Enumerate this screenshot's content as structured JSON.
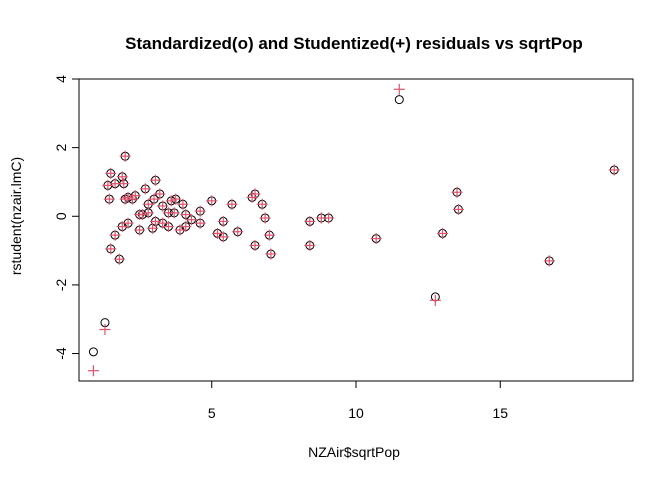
{
  "chart_data": {
    "type": "scatter",
    "title": "Standardized(o) and Studentized(+) residuals vs sqrtPop",
    "xlabel": "NZAir$sqrtPop",
    "ylabel": "rstudent(nzair.lmC)",
    "xlim": [
      0.4,
      19.6
    ],
    "ylim": [
      -4.8,
      4.0
    ],
    "x_ticks": [
      5,
      10,
      15
    ],
    "y_ticks": [
      -4,
      -2,
      0,
      2,
      4
    ],
    "grid": false,
    "legend": "none",
    "colors": {
      "standardized": "#000000",
      "studentized": "#DF536B"
    },
    "series": [
      {
        "name": "Standardized",
        "marker": "circle",
        "points": [
          [
            0.9,
            -3.95
          ],
          [
            1.3,
            -3.1
          ],
          [
            1.4,
            0.9
          ],
          [
            1.5,
            1.25
          ],
          [
            1.45,
            0.5
          ],
          [
            1.5,
            -0.95
          ],
          [
            1.65,
            -0.55
          ],
          [
            1.65,
            0.95
          ],
          [
            1.8,
            -1.25
          ],
          [
            1.9,
            1.15
          ],
          [
            1.95,
            0.95
          ],
          [
            1.9,
            -0.3
          ],
          [
            2.0,
            1.75
          ],
          [
            2.0,
            0.5
          ],
          [
            2.1,
            -0.2
          ],
          [
            2.1,
            0.55
          ],
          [
            2.25,
            0.5
          ],
          [
            2.35,
            0.6
          ],
          [
            2.5,
            -0.4
          ],
          [
            2.5,
            0.05
          ],
          [
            2.6,
            0.05
          ],
          [
            2.7,
            0.8
          ],
          [
            2.8,
            0.1
          ],
          [
            2.8,
            0.35
          ],
          [
            2.95,
            -0.35
          ],
          [
            3.0,
            0.5
          ],
          [
            3.05,
            -0.15
          ],
          [
            3.05,
            1.05
          ],
          [
            3.2,
            0.65
          ],
          [
            3.3,
            -0.2
          ],
          [
            3.3,
            0.3
          ],
          [
            3.5,
            -0.3
          ],
          [
            3.5,
            0.1
          ],
          [
            3.6,
            0.45
          ],
          [
            3.7,
            0.1
          ],
          [
            3.75,
            0.5
          ],
          [
            3.9,
            -0.4
          ],
          [
            4.0,
            0.35
          ],
          [
            4.1,
            0.05
          ],
          [
            4.1,
            -0.3
          ],
          [
            4.3,
            -0.1
          ],
          [
            4.6,
            0.15
          ],
          [
            4.6,
            -0.2
          ],
          [
            5.0,
            0.45
          ],
          [
            5.2,
            -0.5
          ],
          [
            5.4,
            -0.6
          ],
          [
            5.4,
            -0.15
          ],
          [
            5.7,
            0.35
          ],
          [
            5.9,
            -0.45
          ],
          [
            6.4,
            0.55
          ],
          [
            6.5,
            0.65
          ],
          [
            6.5,
            -0.85
          ],
          [
            6.75,
            0.35
          ],
          [
            6.85,
            -0.05
          ],
          [
            7.0,
            -0.55
          ],
          [
            7.05,
            -1.1
          ],
          [
            8.4,
            -0.15
          ],
          [
            8.4,
            -0.85
          ],
          [
            8.8,
            -0.05
          ],
          [
            9.05,
            -0.05
          ],
          [
            10.7,
            -0.65
          ],
          [
            11.5,
            3.4
          ],
          [
            12.75,
            -2.35
          ],
          [
            13.0,
            -0.5
          ],
          [
            13.5,
            0.7
          ],
          [
            13.55,
            0.2
          ],
          [
            16.7,
            -1.3
          ],
          [
            18.95,
            1.35
          ]
        ]
      },
      {
        "name": "Studentized",
        "marker": "plus",
        "points": [
          [
            0.9,
            -4.5
          ],
          [
            1.3,
            -3.3
          ],
          [
            1.4,
            0.9
          ],
          [
            1.5,
            1.25
          ],
          [
            1.45,
            0.5
          ],
          [
            1.5,
            -0.95
          ],
          [
            1.65,
            -0.55
          ],
          [
            1.65,
            0.95
          ],
          [
            1.8,
            -1.25
          ],
          [
            1.9,
            1.15
          ],
          [
            1.95,
            0.95
          ],
          [
            1.9,
            -0.3
          ],
          [
            2.0,
            1.75
          ],
          [
            2.0,
            0.5
          ],
          [
            2.1,
            -0.2
          ],
          [
            2.1,
            0.55
          ],
          [
            2.25,
            0.5
          ],
          [
            2.35,
            0.6
          ],
          [
            2.5,
            -0.4
          ],
          [
            2.5,
            0.05
          ],
          [
            2.6,
            0.05
          ],
          [
            2.7,
            0.8
          ],
          [
            2.8,
            0.1
          ],
          [
            2.8,
            0.35
          ],
          [
            2.95,
            -0.35
          ],
          [
            3.0,
            0.5
          ],
          [
            3.05,
            -0.15
          ],
          [
            3.05,
            1.05
          ],
          [
            3.2,
            0.65
          ],
          [
            3.3,
            -0.2
          ],
          [
            3.3,
            0.3
          ],
          [
            3.5,
            -0.3
          ],
          [
            3.5,
            0.1
          ],
          [
            3.6,
            0.45
          ],
          [
            3.7,
            0.1
          ],
          [
            3.75,
            0.5
          ],
          [
            3.9,
            -0.4
          ],
          [
            4.0,
            0.35
          ],
          [
            4.1,
            0.05
          ],
          [
            4.1,
            -0.3
          ],
          [
            4.3,
            -0.1
          ],
          [
            4.6,
            0.15
          ],
          [
            4.6,
            -0.2
          ],
          [
            5.0,
            0.45
          ],
          [
            5.2,
            -0.5
          ],
          [
            5.4,
            -0.6
          ],
          [
            5.4,
            -0.15
          ],
          [
            5.7,
            0.35
          ],
          [
            5.9,
            -0.45
          ],
          [
            6.4,
            0.55
          ],
          [
            6.5,
            0.65
          ],
          [
            6.5,
            -0.85
          ],
          [
            6.75,
            0.35
          ],
          [
            6.85,
            -0.05
          ],
          [
            7.0,
            -0.55
          ],
          [
            7.05,
            -1.1
          ],
          [
            8.4,
            -0.15
          ],
          [
            8.4,
            -0.85
          ],
          [
            8.8,
            -0.05
          ],
          [
            9.05,
            -0.05
          ],
          [
            10.7,
            -0.65
          ],
          [
            11.5,
            3.7
          ],
          [
            12.75,
            -2.45
          ],
          [
            13.0,
            -0.5
          ],
          [
            13.5,
            0.7
          ],
          [
            13.55,
            0.2
          ],
          [
            16.7,
            -1.3
          ],
          [
            18.95,
            1.35
          ]
        ]
      }
    ]
  }
}
